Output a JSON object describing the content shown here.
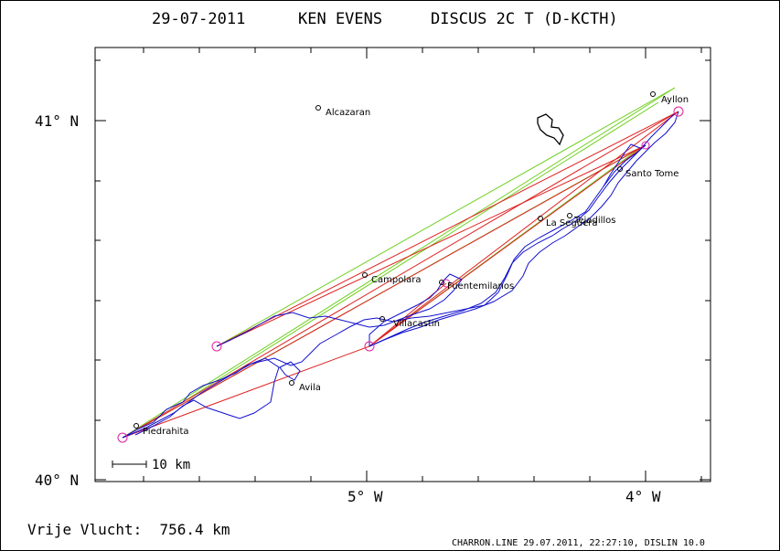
{
  "header": {
    "date": "29-07-2011",
    "pilot": "KEN EVENS",
    "glider": "DISCUS 2C T (D-KCTH)"
  },
  "axes": {
    "lat_labels": [
      "41° N",
      "40° N"
    ],
    "lon_labels": [
      "5° W",
      "4° W"
    ]
  },
  "places": [
    {
      "name": "Alcazaran"
    },
    {
      "name": "Ayllon"
    },
    {
      "name": "Santo Tome"
    },
    {
      "name": "La Seguera"
    },
    {
      "name": "Tejadillos"
    },
    {
      "name": "Campolara"
    },
    {
      "name": "Fuentemilanos"
    },
    {
      "name": "Villacastin"
    },
    {
      "name": "Avila"
    },
    {
      "name": "Piedrahita"
    }
  ],
  "scale": {
    "label": "10 km"
  },
  "footer": {
    "distance": "Vrije Vlucht:  756.4 km",
    "credit": "CHARRON.LINE 29.07.2011, 22:27:10, DISLIN 10.0"
  },
  "colors": {
    "track": "#1010d0",
    "leg_line": "#e02020",
    "optimized_line": "#70d020",
    "turnpoint": "#e020a0"
  }
}
